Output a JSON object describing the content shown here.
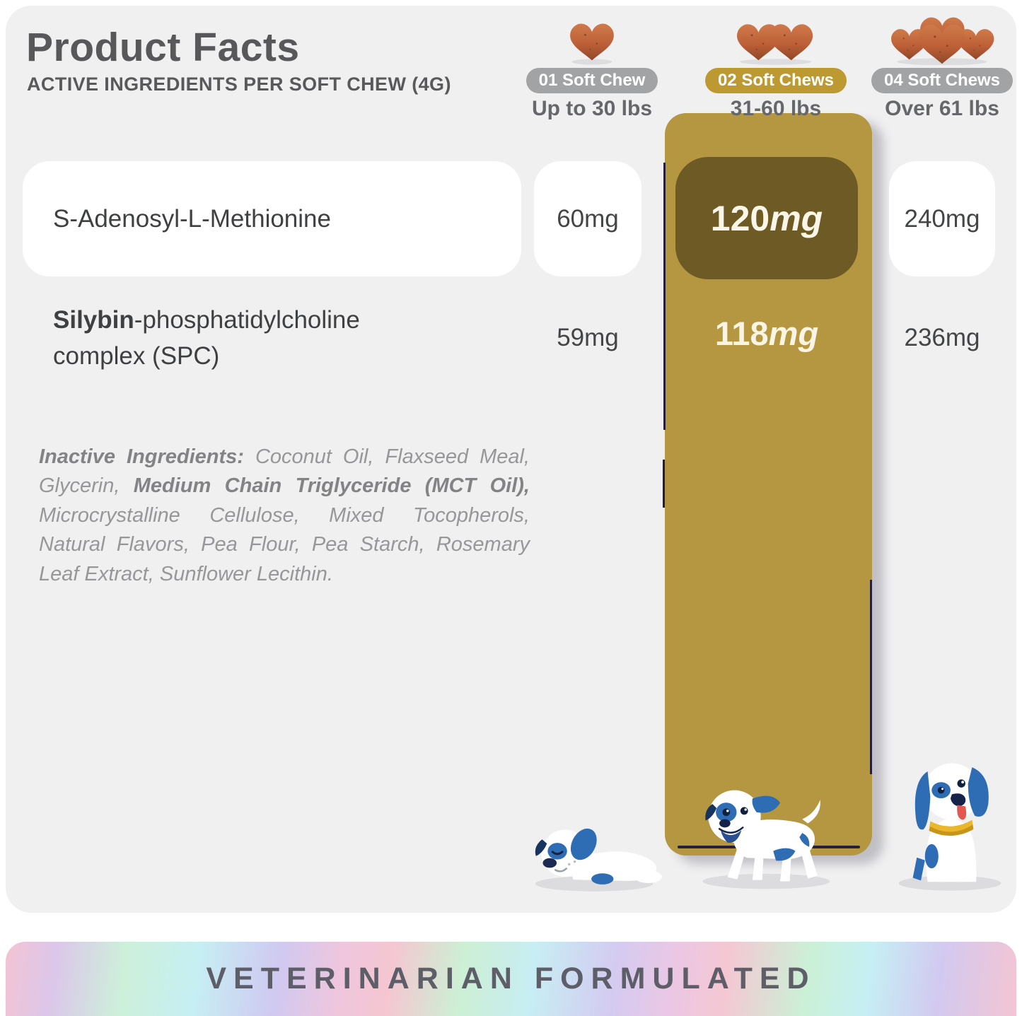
{
  "header": {
    "title": "Product Facts",
    "subtitle": "ACTIVE INGREDIENTS PER SOFT CHEW (4G)"
  },
  "dosage_columns": [
    {
      "badge": "01 Soft Chew",
      "weight": "Up to 30 lbs",
      "chews": "1",
      "highlighted": false
    },
    {
      "badge": "02 Soft Chews",
      "weight": "31-60 lbs",
      "chews": "2",
      "highlighted": true
    },
    {
      "badge": "04 Soft Chews",
      "weight": "Over 61 lbs",
      "chews": "4",
      "highlighted": false
    }
  ],
  "table": {
    "rows": [
      {
        "label_bold": "",
        "label_rest": "S-Adenosyl-L-Methionine",
        "dose_small": "60mg",
        "dose_medium_number": "120",
        "dose_medium_unit": "mg",
        "dose_large": "240mg"
      },
      {
        "label_bold": "Silybin",
        "label_rest": "-phosphatidylcholine complex (SPC)",
        "dose_small": "59mg",
        "dose_medium_number": "118",
        "dose_medium_unit": "mg",
        "dose_large": "236mg"
      }
    ]
  },
  "inactive_ingredients": {
    "segments": [
      {
        "text": "Inactive Ingredients: ",
        "bold": true
      },
      {
        "text": "Coconut Oil, Flaxseed Meal, Glycerin, ",
        "bold": false
      },
      {
        "text": "Medium Chain Triglyceride (MCT Oil),",
        "bold": true
      },
      {
        "text": " Microcrystalline Cellulose, Mixed Tocopherols, Natural Flavors, Pea Flour, Pea Starch, Rosemary Leaf Extract, Sunflower Lecithin.",
        "bold": false
      }
    ]
  },
  "banner": {
    "label": "VETERINARIAN FORMULATED"
  },
  "colors": {
    "panel_bg": "#f0f0f1",
    "gold_bar": "#b49740",
    "gold_dark_box": "#6d5a25",
    "badge_gray": "#a2a3a5",
    "badge_gold": "#bd9a31",
    "chew_brown": "#bd6038",
    "dog_blue": "#2e6cb4",
    "collar_yellow": "#eab72b",
    "tongue_red": "#e4574f"
  }
}
